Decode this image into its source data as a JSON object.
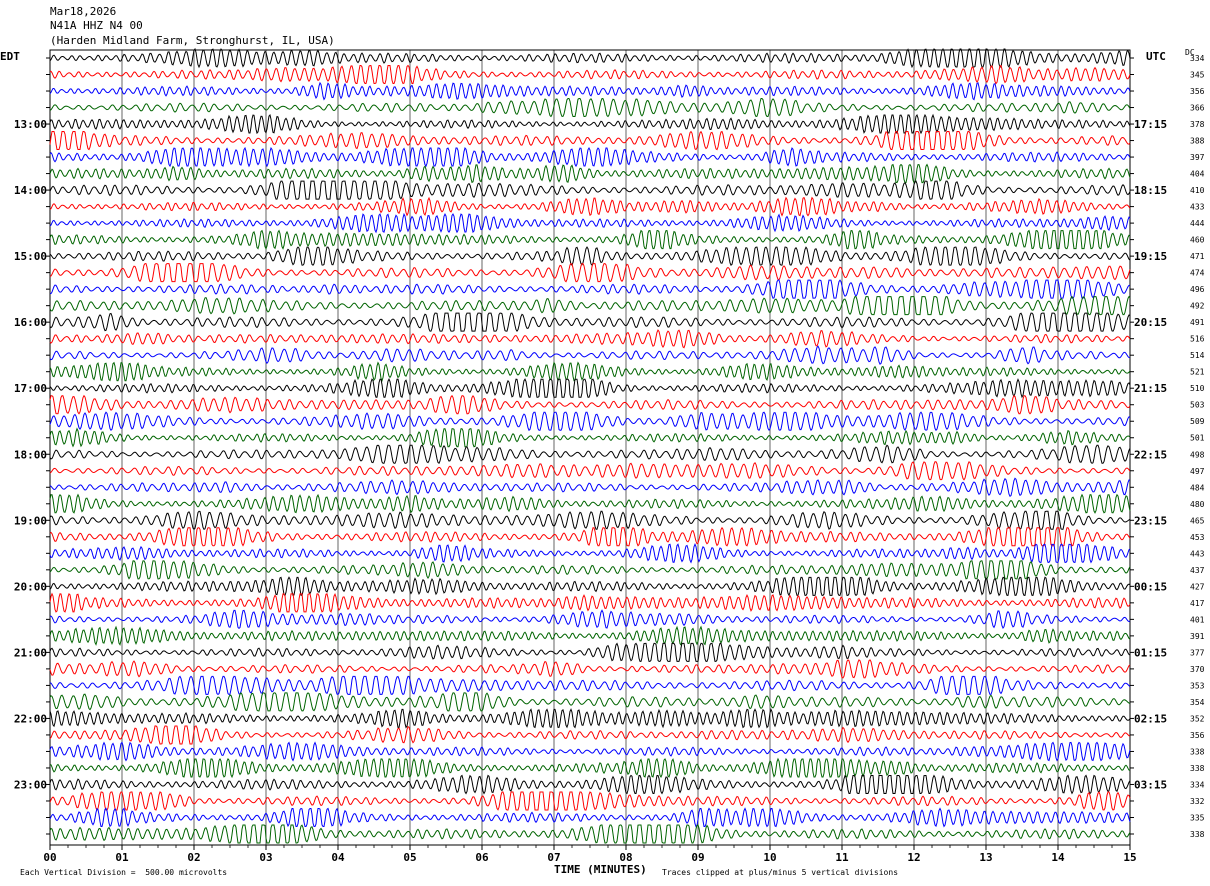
{
  "header": {
    "date": "Mar18,2026",
    "station": "N41A HHZ N4 00",
    "location": "(Harden Midland Farm, Stronghurst, IL, USA)"
  },
  "labels": {
    "left_tz": "EDT",
    "right_tz": "UTC",
    "dc": "DC",
    "xlabel": "TIME (MINUTES)",
    "scale_note": "Each Vertical Division =  500.00 microvolts",
    "clip_note": "Traces clipped at plus/minus 5 vertical divisions"
  },
  "chart_data": {
    "type": "line",
    "title": "N41A HHZ N4 00",
    "xlabel": "TIME (MINUTES)",
    "x_ticks": [
      "00",
      "01",
      "02",
      "03",
      "04",
      "05",
      "06",
      "07",
      "08",
      "09",
      "10",
      "11",
      "12",
      "13",
      "14",
      "15"
    ],
    "xlim": [
      0,
      15
    ],
    "trace_colors": [
      "#000000",
      "#ff0000",
      "#0000ff",
      "#006400"
    ],
    "left_hour_labels": [
      "13:00",
      "14:00",
      "15:00",
      "16:00",
      "17:00",
      "18:00",
      "19:00",
      "20:00",
      "21:00",
      "22:00",
      "23:00"
    ],
    "right_hour_labels": [
      "17:15",
      "18:15",
      "19:15",
      "20:15",
      "21:15",
      "22:15",
      "23:15",
      "00:15",
      "01:15",
      "02:15",
      "03:15"
    ],
    "dc_offsets": [
      334,
      345,
      356,
      366,
      378,
      388,
      397,
      404,
      410,
      433,
      444,
      460,
      471,
      474,
      496,
      492,
      491,
      516,
      514,
      521,
      510,
      503,
      509,
      501,
      498,
      497,
      484,
      480,
      465,
      453,
      443,
      437,
      427,
      417,
      401,
      391,
      377,
      370,
      353,
      354,
      352,
      356,
      338,
      338,
      334,
      332,
      335,
      338
    ],
    "grid": true
  }
}
